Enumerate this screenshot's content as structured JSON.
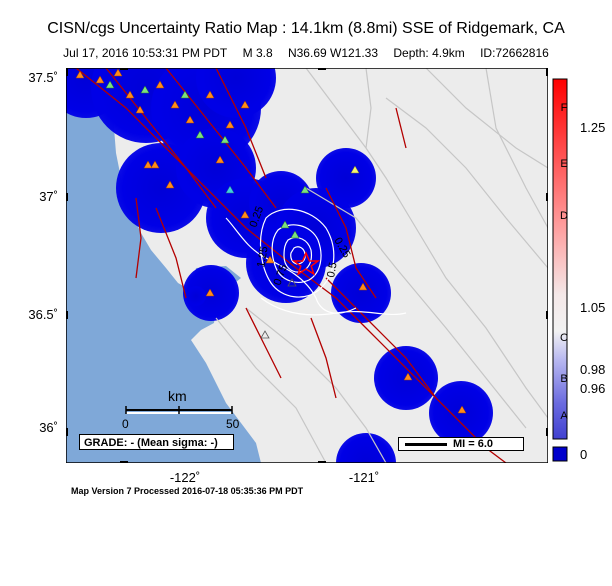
{
  "title": "CISN/cgs Uncertainty Ratio Map : 14.1km (8.8mi) SSE of Ridgemark, CA",
  "subtitle": {
    "datetime": "Jul 17, 2016 10:53:31 PM PDT",
    "magnitude": "M 3.8",
    "location": "N36.69 W121.33",
    "depth": "Depth: 4.9km",
    "id": "ID:72662816"
  },
  "axes": {
    "y_labels": [
      "37.5˚",
      "37˚",
      "36.5˚",
      "36˚"
    ],
    "x_labels": [
      "-122˚",
      "-121˚"
    ]
  },
  "scale_bar": {
    "unit": "km",
    "start": "0",
    "end": "50"
  },
  "grade_text": "GRADE: - (Mean sigma: -)",
  "mi_legend": "MI = 6.0",
  "contour_labels": [
    "0.25",
    "0.5",
    "0.75",
    "1.25",
    "0.25",
    "0.5"
  ],
  "colorbar": {
    "values": [
      "1.25",
      "1.05",
      "0.98",
      "0.96",
      "0"
    ],
    "grades": [
      "F",
      "E",
      "D",
      "C",
      "B",
      "A"
    ],
    "colors": {
      "top": "#ff0000",
      "mid": "#f2f2f2",
      "bottom": "#0000cc"
    }
  },
  "colors": {
    "water": "#7fa8d8",
    "land": "#ececec",
    "fault": "#b30000",
    "uncertainty": "#0000e0",
    "epicenter": "#ff0000"
  },
  "footer": "Map Version 7 Processed 2016-07-18 05:35:36 PM PDT"
}
